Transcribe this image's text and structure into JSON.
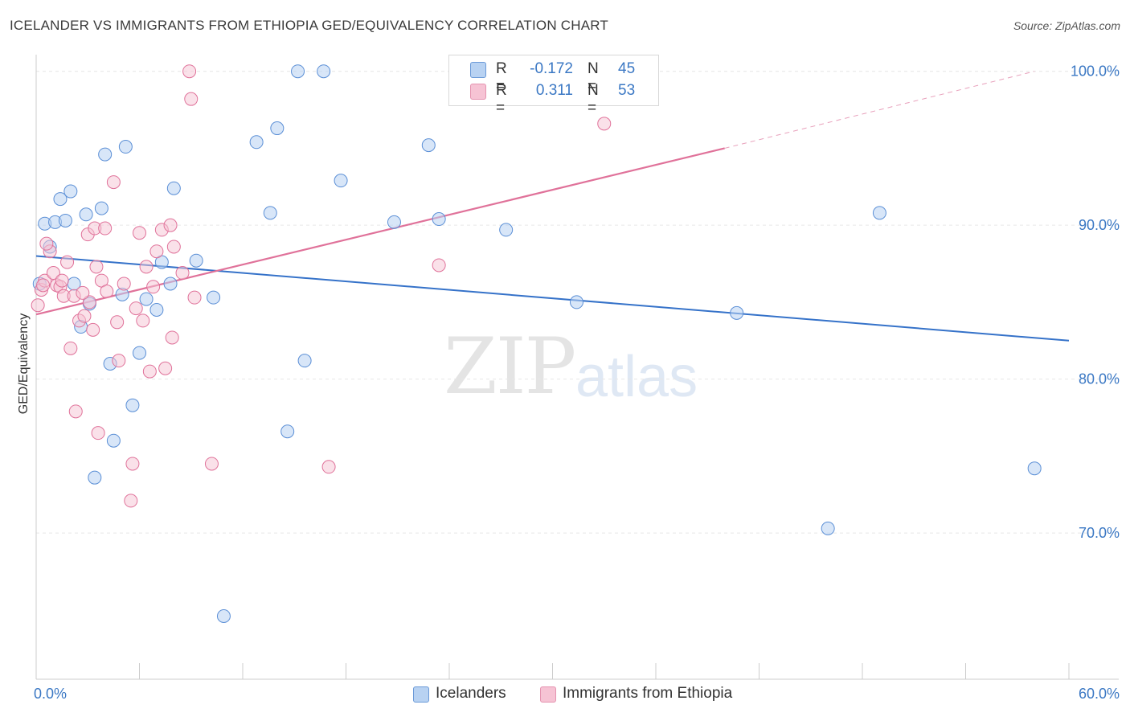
{
  "title": "ICELANDER VS IMMIGRANTS FROM ETHIOPIA GED/EQUIVALENCY CORRELATION CHART",
  "source": "Source: ZipAtlas.com",
  "watermark": {
    "zip": "ZIP",
    "atlas": "atlas"
  },
  "colors": {
    "blue": "#5b8fd6",
    "blue_fill": "#b8d2f2",
    "pink": "#e0729a",
    "pink_fill": "#f6c3d4",
    "axis_label": "#3b78c4"
  },
  "legend": {
    "rows": [
      {
        "r_label": "R =",
        "r_value": "-0.172",
        "n_label": "N =",
        "n_value": "45"
      },
      {
        "r_label": "R =",
        "r_value": "0.311",
        "n_label": "N =",
        "n_value": "53"
      }
    ]
  },
  "bottom_legend": {
    "series1": "Icelanders",
    "series2": "Immigrants from Ethiopia"
  },
  "chart_data": {
    "type": "scatter",
    "title": "ICELANDER VS IMMIGRANTS FROM ETHIOPIA GED/EQUIVALENCY CORRELATION CHART",
    "xlabel": "",
    "ylabel": "GED/Equivalency",
    "xlim": [
      0,
      60
    ],
    "ylim": [
      60.5,
      101.5
    ],
    "x_tick_labels": [
      "0.0%",
      "60.0%"
    ],
    "y_ticks": [
      70,
      80,
      90,
      100
    ],
    "y_tick_labels": [
      "70.0%",
      "80.0%",
      "90.0%",
      "100.0%"
    ],
    "grid": true,
    "legend_position": "top-center",
    "series": [
      {
        "name": "Icelanders",
        "trend": {
          "x": [
            0,
            60
          ],
          "y": [
            88.0,
            82.5
          ]
        },
        "points": [
          [
            0.2,
            86.2
          ],
          [
            0.5,
            90.1
          ],
          [
            1.1,
            90.2
          ],
          [
            1.4,
            91.7
          ],
          [
            2.0,
            92.2
          ],
          [
            1.7,
            90.3
          ],
          [
            0.8,
            88.6
          ],
          [
            2.2,
            86.2
          ],
          [
            2.9,
            90.7
          ],
          [
            3.1,
            84.9
          ],
          [
            3.8,
            91.1
          ],
          [
            4.0,
            94.6
          ],
          [
            5.2,
            95.1
          ],
          [
            5.0,
            85.5
          ],
          [
            2.6,
            83.4
          ],
          [
            4.3,
            81.0
          ],
          [
            5.6,
            78.3
          ],
          [
            6.0,
            81.7
          ],
          [
            4.5,
            76.0
          ],
          [
            6.4,
            85.2
          ],
          [
            7.0,
            84.5
          ],
          [
            7.3,
            87.6
          ],
          [
            7.8,
            86.2
          ],
          [
            8.0,
            92.4
          ],
          [
            9.3,
            87.7
          ],
          [
            10.3,
            85.3
          ],
          [
            3.4,
            73.6
          ],
          [
            10.9,
            64.6
          ],
          [
            12.8,
            95.4
          ],
          [
            13.6,
            90.8
          ],
          [
            14.0,
            96.3
          ],
          [
            14.6,
            76.6
          ],
          [
            15.2,
            100.0
          ],
          [
            15.6,
            81.2
          ],
          [
            16.7,
            100.0
          ],
          [
            17.7,
            92.9
          ],
          [
            20.8,
            90.2
          ],
          [
            22.8,
            95.2
          ],
          [
            23.4,
            90.4
          ],
          [
            27.3,
            89.7
          ],
          [
            31.4,
            85.0
          ],
          [
            40.7,
            84.3
          ],
          [
            46.0,
            70.3
          ],
          [
            49.0,
            90.8
          ],
          [
            58.0,
            74.2
          ]
        ]
      },
      {
        "name": "Immigrants from Ethiopia",
        "trend": {
          "x": [
            0,
            40
          ],
          "y": [
            84.2,
            95.0
          ]
        },
        "trend_ext": {
          "x": [
            40,
            58
          ],
          "y": [
            95.0,
            100.0
          ]
        },
        "points": [
          [
            0.1,
            84.8
          ],
          [
            0.3,
            85.8
          ],
          [
            0.5,
            86.4
          ],
          [
            0.8,
            88.3
          ],
          [
            1.0,
            86.9
          ],
          [
            1.2,
            86.1
          ],
          [
            1.4,
            86.0
          ],
          [
            1.6,
            85.4
          ],
          [
            1.8,
            87.6
          ],
          [
            2.0,
            82.0
          ],
          [
            2.2,
            85.4
          ],
          [
            2.3,
            77.9
          ],
          [
            2.5,
            83.8
          ],
          [
            2.8,
            84.1
          ],
          [
            3.0,
            89.4
          ],
          [
            3.1,
            85.0
          ],
          [
            3.3,
            83.2
          ],
          [
            3.4,
            89.8
          ],
          [
            3.5,
            87.3
          ],
          [
            3.6,
            76.5
          ],
          [
            3.8,
            86.4
          ],
          [
            4.0,
            89.8
          ],
          [
            4.1,
            85.7
          ],
          [
            4.5,
            92.8
          ],
          [
            4.7,
            83.7
          ],
          [
            4.8,
            81.2
          ],
          [
            5.1,
            86.2
          ],
          [
            5.5,
            72.1
          ],
          [
            5.6,
            74.5
          ],
          [
            5.8,
            84.6
          ],
          [
            6.0,
            89.5
          ],
          [
            6.2,
            83.8
          ],
          [
            6.4,
            87.3
          ],
          [
            6.6,
            80.5
          ],
          [
            6.8,
            86.0
          ],
          [
            7.0,
            88.3
          ],
          [
            7.3,
            89.7
          ],
          [
            7.5,
            80.7
          ],
          [
            7.8,
            90.0
          ],
          [
            7.9,
            82.7
          ],
          [
            8.0,
            88.6
          ],
          [
            8.5,
            86.9
          ],
          [
            8.9,
            100.0
          ],
          [
            9.0,
            98.2
          ],
          [
            9.2,
            85.3
          ],
          [
            10.2,
            74.5
          ],
          [
            0.6,
            88.8
          ],
          [
            1.5,
            86.4
          ],
          [
            17.0,
            74.3
          ],
          [
            23.4,
            87.4
          ],
          [
            33.0,
            96.6
          ],
          [
            0.4,
            86.1
          ],
          [
            2.7,
            85.6
          ]
        ]
      }
    ]
  }
}
